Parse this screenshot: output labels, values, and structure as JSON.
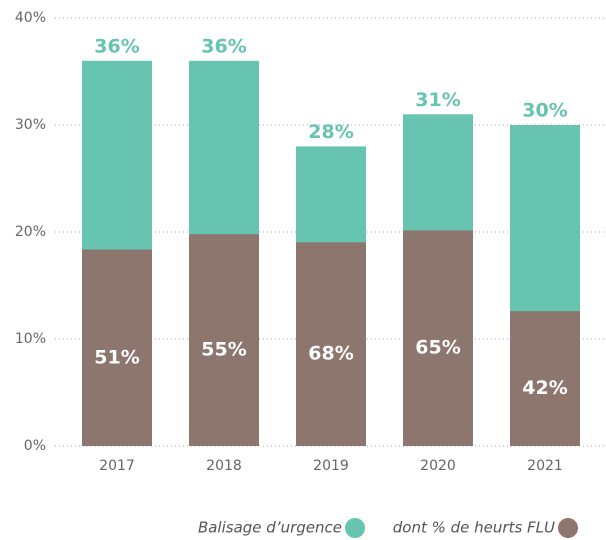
{
  "chart_data": {
    "type": "bar",
    "categories": [
      "2017",
      "2018",
      "2019",
      "2020",
      "2021"
    ],
    "series": [
      {
        "name": "Balisage d’urgence",
        "color": "#66c4b0",
        "values": [
          36,
          36,
          28,
          31,
          30
        ],
        "value_labels": [
          "36%",
          "36%",
          "28%",
          "31%",
          "30%"
        ]
      },
      {
        "name": "dont % de heurts FLU",
        "color": "#8d766d",
        "values": [
          51,
          55,
          68,
          65,
          42
        ],
        "value_labels": [
          "51%",
          "55%",
          "68%",
          "65%",
          "42%"
        ]
      }
    ],
    "ylim": [
      0,
      40
    ],
    "yticks": [
      {
        "value": 0,
        "label": "0%"
      },
      {
        "value": 10,
        "label": "10%"
      },
      {
        "value": 20,
        "label": "20%"
      },
      {
        "value": 30,
        "label": "30%"
      },
      {
        "value": 40,
        "label": "40%"
      }
    ],
    "grid": true
  }
}
